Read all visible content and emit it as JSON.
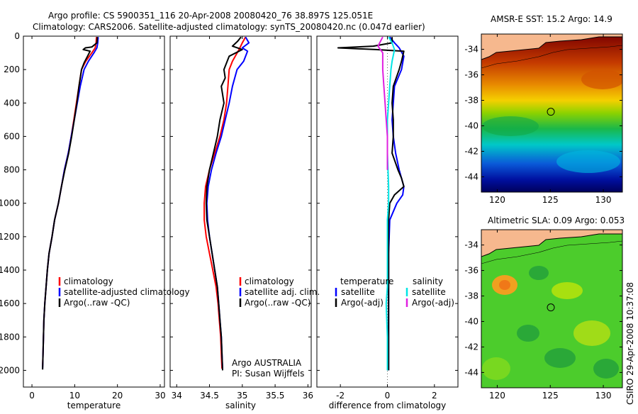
{
  "figure": {
    "title_line1": "Argo profile: CS 5900351_116 20-Apr-2008 20080420_76 38.897S 125.051E",
    "title_line2": "Climatology: CARS2006. Satellite-adjusted climatology: synTS_20080420.nc (0.047d earlier)",
    "side_label": "CSIRO 29-Apr-2008 10:37:08",
    "credit_line1": "Argo AUSTRALIA",
    "credit_line2": "PI: Susan Wijffels"
  },
  "colors": {
    "climatology": "#ff0000",
    "satellite": "#0000ff",
    "argo": "#000000",
    "salinity_satellite": "#00e5e5",
    "salinity_argo": "#e020e0",
    "land": "#f6b88e"
  },
  "chart_data": [
    {
      "type": "line",
      "name": "temperature",
      "xlabel": "temperature",
      "ylabel": "",
      "xlim": [
        -2,
        31
      ],
      "ylim": [
        2100,
        0
      ],
      "xticks": [
        0,
        10,
        20,
        30
      ],
      "yticks": [
        0,
        200,
        400,
        600,
        800,
        1000,
        1200,
        1400,
        1600,
        1800,
        2000
      ],
      "legend": [
        "climatology",
        "satellite-adjusted climatology",
        "Argo(..raw -QC)"
      ],
      "legend_position": "lower-center",
      "series": [
        {
          "key": "climatology",
          "color": "#ff0000",
          "points": [
            [
              15.1,
              5
            ],
            [
              15.0,
              40
            ],
            [
              14.8,
              70
            ],
            [
              14.0,
              100
            ],
            [
              12.6,
              150
            ],
            [
              11.6,
              200
            ],
            [
              11.0,
              300
            ],
            [
              10.4,
              400
            ],
            [
              9.8,
              500
            ],
            [
              9.2,
              600
            ],
            [
              8.5,
              700
            ],
            [
              7.6,
              800
            ],
            [
              6.9,
              900
            ],
            [
              6.2,
              1000
            ],
            [
              5.3,
              1100
            ],
            [
              4.7,
              1200
            ],
            [
              4.0,
              1300
            ],
            [
              3.6,
              1400
            ],
            [
              3.3,
              1500
            ],
            [
              3.0,
              1600
            ],
            [
              2.8,
              1700
            ],
            [
              2.7,
              1800
            ],
            [
              2.6,
              1900
            ],
            [
              2.5,
              1980
            ]
          ]
        },
        {
          "key": "satellite",
          "color": "#0000ff",
          "points": [
            [
              15.5,
              5
            ],
            [
              15.4,
              40
            ],
            [
              15.2,
              70
            ],
            [
              14.5,
              100
            ],
            [
              13.2,
              150
            ],
            [
              12.2,
              200
            ],
            [
              11.3,
              300
            ],
            [
              10.6,
              400
            ],
            [
              9.9,
              500
            ],
            [
              9.2,
              600
            ],
            [
              8.5,
              700
            ],
            [
              7.6,
              800
            ],
            [
              6.9,
              900
            ],
            [
              6.2,
              1000
            ],
            [
              5.3,
              1100
            ],
            [
              4.7,
              1200
            ],
            [
              4.0,
              1300
            ],
            [
              3.6,
              1400
            ],
            [
              3.3,
              1500
            ],
            [
              3.0,
              1600
            ],
            [
              2.8,
              1700
            ],
            [
              2.7,
              1800
            ],
            [
              2.6,
              1900
            ],
            [
              2.5,
              1990
            ]
          ]
        },
        {
          "key": "argo",
          "color": "#000000",
          "points": [
            [
              15.3,
              5
            ],
            [
              15.2,
              40
            ],
            [
              14.0,
              65
            ],
            [
              12.5,
              70
            ],
            [
              12.0,
              80
            ],
            [
              13.6,
              90
            ],
            [
              13.2,
              110
            ],
            [
              12.2,
              160
            ],
            [
              11.6,
              200
            ],
            [
              11.0,
              300
            ],
            [
              10.5,
              400
            ],
            [
              9.9,
              500
            ],
            [
              9.3,
              600
            ],
            [
              8.6,
              700
            ],
            [
              7.7,
              800
            ],
            [
              6.9,
              900
            ],
            [
              6.2,
              1000
            ],
            [
              5.3,
              1100
            ],
            [
              4.7,
              1200
            ],
            [
              4.0,
              1300
            ],
            [
              3.6,
              1400
            ],
            [
              3.3,
              1500
            ],
            [
              3.0,
              1600
            ],
            [
              2.8,
              1700
            ],
            [
              2.7,
              1800
            ],
            [
              2.6,
              1900
            ],
            [
              2.5,
              1995
            ]
          ]
        }
      ]
    },
    {
      "type": "line",
      "name": "salinity",
      "xlabel": "salinity",
      "ylabel": "",
      "xlim": [
        33.9,
        36.05
      ],
      "ylim": [
        2100,
        0
      ],
      "xticks": [
        34,
        34.5,
        35,
        35.5,
        36
      ],
      "legend": [
        "climatology",
        "satellite adj. clim.",
        "Argo(..raw -QC)"
      ],
      "legend_position": "lower-right",
      "series": [
        {
          "key": "climatology",
          "color": "#ff0000",
          "points": [
            [
              35.05,
              5
            ],
            [
              35.0,
              40
            ],
            [
              34.95,
              80
            ],
            [
              34.85,
              150
            ],
            [
              34.8,
              200
            ],
            [
              34.78,
              300
            ],
            [
              34.76,
              400
            ],
            [
              34.72,
              500
            ],
            [
              34.66,
              600
            ],
            [
              34.58,
              700
            ],
            [
              34.5,
              800
            ],
            [
              34.44,
              900
            ],
            [
              34.42,
              1000
            ],
            [
              34.42,
              1100
            ],
            [
              34.45,
              1200
            ],
            [
              34.5,
              1300
            ],
            [
              34.55,
              1400
            ],
            [
              34.6,
              1500
            ],
            [
              34.63,
              1600
            ],
            [
              34.65,
              1700
            ],
            [
              34.67,
              1800
            ],
            [
              34.68,
              1900
            ],
            [
              34.69,
              1990
            ]
          ]
        },
        {
          "key": "satellite",
          "color": "#0000ff",
          "points": [
            [
              35.05,
              5
            ],
            [
              35.1,
              40
            ],
            [
              35.0,
              70
            ],
            [
              35.08,
              90
            ],
            [
              35.02,
              150
            ],
            [
              34.92,
              200
            ],
            [
              34.85,
              300
            ],
            [
              34.8,
              400
            ],
            [
              34.74,
              500
            ],
            [
              34.68,
              600
            ],
            [
              34.6,
              700
            ],
            [
              34.53,
              800
            ],
            [
              34.48,
              900
            ],
            [
              34.46,
              1000
            ],
            [
              34.47,
              1100
            ],
            [
              34.5,
              1200
            ],
            [
              34.54,
              1300
            ],
            [
              34.58,
              1400
            ],
            [
              34.62,
              1500
            ],
            [
              34.64,
              1600
            ],
            [
              34.66,
              1700
            ],
            [
              34.68,
              1800
            ],
            [
              34.69,
              1900
            ],
            [
              34.7,
              1995
            ]
          ]
        },
        {
          "key": "argo",
          "color": "#000000",
          "points": [
            [
              34.98,
              5
            ],
            [
              34.93,
              30
            ],
            [
              34.85,
              60
            ],
            [
              35.0,
              80
            ],
            [
              34.8,
              120
            ],
            [
              34.72,
              200
            ],
            [
              34.74,
              250
            ],
            [
              34.68,
              300
            ],
            [
              34.72,
              400
            ],
            [
              34.66,
              500
            ],
            [
              34.62,
              600
            ],
            [
              34.56,
              700
            ],
            [
              34.5,
              800
            ],
            [
              34.46,
              900
            ],
            [
              34.45,
              1000
            ],
            [
              34.46,
              1100
            ],
            [
              34.5,
              1200
            ],
            [
              34.54,
              1300
            ],
            [
              34.58,
              1400
            ],
            [
              34.62,
              1500
            ],
            [
              34.64,
              1600
            ],
            [
              34.66,
              1700
            ],
            [
              34.68,
              1800
            ],
            [
              34.69,
              1900
            ],
            [
              34.7,
              2000
            ]
          ]
        }
      ]
    },
    {
      "type": "line",
      "name": "difference",
      "xlabel": "difference from climatology",
      "ylabel": "",
      "xlim": [
        -3.0,
        3.0
      ],
      "ylim": [
        2100,
        0
      ],
      "xticks": [
        -2,
        0,
        2
      ],
      "legend_groups": [
        {
          "title": "temperature",
          "items": [
            "satellite",
            "Argo(-adj)"
          ]
        },
        {
          "title": "salinity",
          "items": [
            "satellite",
            "Argo(-adj)"
          ]
        }
      ],
      "legend_position": "lower-center",
      "series": [
        {
          "key": "temp_satellite",
          "color": "#0000ff",
          "points": [
            [
              0.1,
              5
            ],
            [
              0.3,
              40
            ],
            [
              0.5,
              70
            ],
            [
              0.7,
              120
            ],
            [
              0.6,
              200
            ],
            [
              0.3,
              300
            ],
            [
              0.25,
              400
            ],
            [
              0.2,
              500
            ],
            [
              0.25,
              600
            ],
            [
              0.35,
              700
            ],
            [
              0.5,
              800
            ],
            [
              0.6,
              850
            ],
            [
              0.7,
              900
            ],
            [
              0.65,
              950
            ],
            [
              0.4,
              1000
            ],
            [
              0.1,
              1100
            ],
            [
              0.05,
              1300
            ],
            [
              0.05,
              1600
            ],
            [
              0.05,
              1900
            ],
            [
              0.05,
              2000
            ]
          ]
        },
        {
          "key": "temp_argo",
          "color": "#000000",
          "points": [
            [
              0.2,
              5
            ],
            [
              0.2,
              40
            ],
            [
              -0.6,
              60
            ],
            [
              -2.1,
              70
            ],
            [
              -0.5,
              80
            ],
            [
              0.7,
              90
            ],
            [
              0.6,
              150
            ],
            [
              0.5,
              200
            ],
            [
              0.25,
              300
            ],
            [
              0.2,
              400
            ],
            [
              0.25,
              500
            ],
            [
              0.25,
              600
            ],
            [
              0.2,
              700
            ],
            [
              0.45,
              800
            ],
            [
              0.6,
              850
            ],
            [
              0.7,
              900
            ],
            [
              0.3,
              950
            ],
            [
              0.1,
              1000
            ],
            [
              0.05,
              1100
            ],
            [
              0.05,
              1300
            ],
            [
              0.05,
              1600
            ],
            [
              0.05,
              1900
            ],
            [
              0.05,
              2000
            ]
          ]
        },
        {
          "key": "sal_satellite",
          "color": "#00e5e5",
          "points": [
            [
              0.05,
              5
            ],
            [
              0.2,
              40
            ],
            [
              0.3,
              80
            ],
            [
              0.2,
              150
            ],
            [
              0.15,
              200
            ],
            [
              0.1,
              300
            ],
            [
              0.05,
              400
            ],
            [
              0.0,
              500
            ],
            [
              0.0,
              700
            ],
            [
              0.05,
              900
            ],
            [
              0.05,
              1000
            ],
            [
              0.0,
              1100
            ],
            [
              0.0,
              1300
            ],
            [
              0.0,
              1500
            ],
            [
              -0.05,
              1600
            ],
            [
              0.0,
              1800
            ],
            [
              0.0,
              2000
            ]
          ]
        },
        {
          "key": "sal_argo",
          "color": "#e020e0",
          "points": [
            [
              -0.2,
              5
            ],
            [
              -0.4,
              60
            ],
            [
              -0.2,
              100
            ],
            [
              -0.2,
              150
            ],
            [
              -0.2,
              200
            ],
            [
              -0.15,
              300
            ],
            [
              -0.1,
              400
            ],
            [
              -0.05,
              500
            ],
            [
              0.0,
              600
            ],
            [
              0.0,
              800
            ]
          ]
        }
      ]
    },
    {
      "type": "heatmap",
      "name": "sst_map",
      "title": "AMSR-E SST: 15.2 Argo: 14.9",
      "xticks": [
        120,
        125,
        130
      ],
      "yticks": [
        -34,
        -36,
        -38,
        -40,
        -42,
        -44
      ],
      "xlim": [
        118.5,
        131.8
      ],
      "ylim": [
        -45.2,
        -32.8
      ],
      "marker": {
        "lon": 125.051,
        "lat": -38.897
      }
    },
    {
      "type": "heatmap",
      "name": "sla_map",
      "title": "Altimetric SLA: 0.09 Argo: 0.053",
      "xticks": [
        120,
        125,
        130
      ],
      "yticks": [
        -34,
        -36,
        -38,
        -40,
        -42,
        -44
      ],
      "xlim": [
        118.5,
        131.8
      ],
      "ylim": [
        -45.2,
        -32.8
      ],
      "marker": {
        "lon": 125.051,
        "lat": -38.897
      }
    }
  ]
}
